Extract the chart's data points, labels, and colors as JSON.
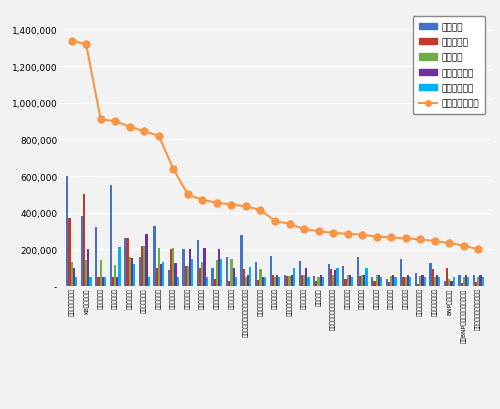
{
  "categories": [
    "미래에셋자산운용",
    "KB자사산운용",
    "하이자산운용",
    "마리자산운용",
    "한화자산운용",
    "한대투자산운용",
    "한국자산운용",
    "대신자산운용",
    "농협자산운용",
    "신원자산운용",
    "키움자산운용",
    "유진자산운용",
    "예전자산운용유리스지속산운용",
    "키마에다자산운용",
    "롯데자산운용",
    "상용우리자산운용",
    "우리자산운용",
    "이자산운용",
    "한국두자산별투지수산운용",
    "대현자산운용",
    "이전자산운용",
    "피리자산운용",
    "뉴이자산운용",
    "문크자산운용",
    "트리스노자산운용",
    "란티에셋자산운용",
    "BNP자산운용",
    "신한BNP리브자산운용자산운용",
    "현대인베스트먼트자산운용"
  ],
  "참여지수": [
    600000,
    380000,
    320000,
    550000,
    260000,
    160000,
    330000,
    90000,
    200000,
    250000,
    100000,
    160000,
    280000,
    130000,
    165000,
    60000,
    135000,
    55000,
    120000,
    110000,
    160000,
    50000,
    40000,
    145000,
    70000,
    125000,
    25000,
    60000,
    60000
  ],
  "미디어지수": [
    370000,
    500000,
    50000,
    50000,
    260000,
    220000,
    100000,
    200000,
    110000,
    100000,
    40000,
    30000,
    95000,
    35000,
    60000,
    55000,
    60000,
    30000,
    95000,
    40000,
    55000,
    30000,
    20000,
    50000,
    10000,
    95000,
    100000,
    15000,
    20000
  ],
  "소통지수": [
    130000,
    140000,
    140000,
    115000,
    160000,
    220000,
    210000,
    210000,
    110000,
    130000,
    140000,
    145000,
    50000,
    95000,
    50000,
    55000,
    60000,
    50000,
    60000,
    60000,
    60000,
    60000,
    55000,
    50000,
    55000,
    50000,
    40000,
    50000,
    50000
  ],
  "커뮤니티지수": [
    100000,
    200000,
    50000,
    50000,
    155000,
    285000,
    120000,
    125000,
    200000,
    210000,
    200000,
    100000,
    60000,
    50000,
    60000,
    60000,
    100000,
    60000,
    90000,
    60000,
    60000,
    60000,
    60000,
    60000,
    60000,
    60000,
    30000,
    60000,
    60000
  ],
  "사회공헌지수": [
    50000,
    50000,
    50000,
    215000,
    120000,
    50000,
    130000,
    50000,
    145000,
    50000,
    150000,
    50000,
    105000,
    50000,
    50000,
    100000,
    50000,
    50000,
    100000,
    50000,
    100000,
    50000,
    50000,
    50000,
    50000,
    50000,
    50000,
    50000,
    50000
  ],
  "브랜드평판지수": [
    1340000,
    1320000,
    910000,
    900000,
    870000,
    845000,
    820000,
    640000,
    500000,
    470000,
    455000,
    445000,
    435000,
    415000,
    355000,
    340000,
    310000,
    300000,
    290000,
    285000,
    280000,
    270000,
    265000,
    260000,
    255000,
    245000,
    235000,
    220000,
    200000
  ],
  "bar_colors": {
    "참여지수": "#4472C4",
    "미디어지수": "#C0392B",
    "소통지수": "#70AD47",
    "커뮤니티지수": "#7030A0",
    "사회공헌지수": "#00B0F0"
  },
  "line_color": "#F79646",
  "bg_color": "#F2F2F2",
  "plot_bg": "#F2F2F2",
  "ylim": [
    0,
    1500000
  ],
  "yticks": [
    0,
    200000,
    400000,
    600000,
    800000,
    1000000,
    1200000,
    1400000
  ],
  "ytick_labels": [
    "-",
    "200,000",
    "400,000",
    "600,000",
    "800,000",
    "1,000,000",
    "1,200,000",
    "1,400,000"
  ]
}
